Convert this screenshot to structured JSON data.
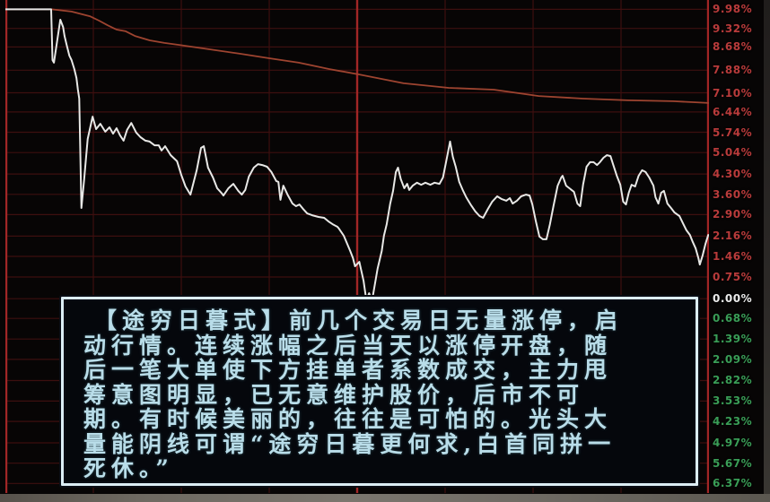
{
  "colors": {
    "background": "#070505",
    "grid_minor": "#3d0f0f",
    "grid_major": "#a12626",
    "price_line": "#e8e8e6",
    "avg_line": "#9e4430",
    "label_up": "#b93b3b",
    "label_zero": "#ececec",
    "label_down": "#3a9e57",
    "box_border": "#dcedf4",
    "box_background": "#05070c",
    "box_text": "#b9dde9"
  },
  "chart_data": {
    "type": "line",
    "title": "",
    "xlabel": "",
    "ylabel": "",
    "x_axis": {
      "unit": "percent_of_trading_session",
      "gridlines": [
        0,
        12.5,
        25,
        37.5,
        50,
        62.5,
        75,
        87.5,
        100
      ],
      "major_gridlines": [
        0,
        50,
        100
      ]
    },
    "y_axis": {
      "top_pct": 10.3,
      "bottom_pct": -6.7,
      "grid_on": true,
      "tick_labels": [
        {
          "text": "9.98%",
          "value": 9.98,
          "state": "up"
        },
        {
          "text": "9.32%",
          "value": 9.32,
          "state": "up"
        },
        {
          "text": "8.68%",
          "value": 8.68,
          "state": "up"
        },
        {
          "text": "7.88%",
          "value": 7.88,
          "state": "up"
        },
        {
          "text": "7.10%",
          "value": 7.1,
          "state": "up"
        },
        {
          "text": "6.44%",
          "value": 6.44,
          "state": "up"
        },
        {
          "text": "5.74%",
          "value": 5.74,
          "state": "up"
        },
        {
          "text": "5.04%",
          "value": 5.04,
          "state": "up"
        },
        {
          "text": "4.30%",
          "value": 4.3,
          "state": "up"
        },
        {
          "text": "3.60%",
          "value": 3.6,
          "state": "up"
        },
        {
          "text": "2.90%",
          "value": 2.9,
          "state": "up"
        },
        {
          "text": "2.16%",
          "value": 2.16,
          "state": "up"
        },
        {
          "text": "1.46%",
          "value": 1.46,
          "state": "up"
        },
        {
          "text": "0.75%",
          "value": 0.75,
          "state": "up"
        },
        {
          "text": "0.00%",
          "value": 0.0,
          "state": "zero"
        },
        {
          "text": "0.68%",
          "value": -0.68,
          "state": "down"
        },
        {
          "text": "1.39%",
          "value": -1.39,
          "state": "down"
        },
        {
          "text": "2.09%",
          "value": -2.09,
          "state": "down"
        },
        {
          "text": "2.82%",
          "value": -2.82,
          "state": "down"
        },
        {
          "text": "3.53%",
          "value": -3.53,
          "state": "down"
        },
        {
          "text": "4.23%",
          "value": -4.23,
          "state": "down"
        },
        {
          "text": "4.97%",
          "value": -4.97,
          "state": "down"
        },
        {
          "text": "5.67%",
          "value": -5.67,
          "state": "down"
        },
        {
          "text": "6.37%",
          "value": -6.37,
          "state": "down"
        }
      ]
    },
    "series": [
      {
        "name": "price",
        "color": "#e8e8e6",
        "width": 2,
        "points": [
          [
            0,
            9.98
          ],
          [
            6.5,
            9.98
          ],
          [
            6.7,
            8.23
          ],
          [
            6.9,
            8.14
          ],
          [
            7.8,
            9.62
          ],
          [
            8.2,
            9.37
          ],
          [
            8.4,
            9.06
          ],
          [
            8.7,
            8.76
          ],
          [
            9.1,
            8.38
          ],
          [
            9.4,
            8.23
          ],
          [
            9.8,
            7.92
          ],
          [
            10.1,
            7.61
          ],
          [
            10.3,
            7.21
          ],
          [
            10.5,
            6.9
          ],
          [
            10.8,
            3.13
          ],
          [
            11.2,
            4.12
          ],
          [
            11.7,
            5.51
          ],
          [
            12.4,
            6.28
          ],
          [
            12.9,
            5.85
          ],
          [
            13.5,
            6.03
          ],
          [
            14.2,
            5.76
          ],
          [
            14.8,
            5.91
          ],
          [
            15.3,
            5.69
          ],
          [
            15.8,
            5.88
          ],
          [
            16.3,
            5.63
          ],
          [
            16.8,
            5.45
          ],
          [
            17.3,
            5.82
          ],
          [
            17.9,
            6.06
          ],
          [
            18.6,
            5.73
          ],
          [
            19.2,
            5.57
          ],
          [
            19.9,
            5.45
          ],
          [
            20.5,
            5.42
          ],
          [
            21.2,
            5.29
          ],
          [
            21.8,
            5.29
          ],
          [
            22.2,
            5.11
          ],
          [
            22.7,
            5.26
          ],
          [
            23.5,
            4.95
          ],
          [
            24.4,
            4.74
          ],
          [
            25.0,
            4.27
          ],
          [
            25.6,
            3.87
          ],
          [
            26.3,
            3.59
          ],
          [
            27.2,
            4.43
          ],
          [
            27.8,
            5.2
          ],
          [
            28.2,
            5.26
          ],
          [
            28.8,
            4.52
          ],
          [
            29.5,
            4.18
          ],
          [
            30.1,
            3.81
          ],
          [
            30.8,
            3.62
          ],
          [
            31.0,
            3.56
          ],
          [
            31.7,
            3.81
          ],
          [
            32.1,
            3.9
          ],
          [
            32.4,
            3.96
          ],
          [
            33.1,
            3.72
          ],
          [
            33.6,
            3.59
          ],
          [
            34.1,
            3.75
          ],
          [
            34.6,
            4.21
          ],
          [
            35.3,
            4.52
          ],
          [
            35.9,
            4.64
          ],
          [
            36.5,
            4.61
          ],
          [
            37.2,
            4.55
          ],
          [
            37.8,
            4.37
          ],
          [
            38.5,
            4.06
          ],
          [
            38.8,
            4.03
          ],
          [
            39.1,
            3.41
          ],
          [
            39.5,
            3.9
          ],
          [
            40.1,
            3.59
          ],
          [
            40.8,
            3.28
          ],
          [
            41.3,
            3.19
          ],
          [
            41.8,
            3.25
          ],
          [
            42.3,
            3.1
          ],
          [
            42.9,
            2.94
          ],
          [
            43.6,
            2.88
          ],
          [
            44.5,
            2.82
          ],
          [
            45.3,
            2.79
          ],
          [
            45.9,
            2.67
          ],
          [
            46.5,
            2.57
          ],
          [
            47.2,
            2.48
          ],
          [
            47.4,
            2.42
          ],
          [
            48.1,
            2.17
          ],
          [
            49.0,
            1.65
          ],
          [
            49.4,
            1.4
          ],
          [
            49.7,
            1.12
          ],
          [
            50.3,
            1.27
          ],
          [
            50.9,
            0.62
          ],
          [
            51.3,
            -0.05
          ],
          [
            51.7,
            0.19
          ],
          [
            52.1,
            -0.08
          ],
          [
            52.9,
            1.03
          ],
          [
            53.5,
            1.65
          ],
          [
            53.8,
            2.17
          ],
          [
            54.2,
            2.57
          ],
          [
            54.7,
            3.28
          ],
          [
            55.1,
            3.72
          ],
          [
            55.5,
            4.37
          ],
          [
            55.8,
            4.52
          ],
          [
            56.2,
            4.12
          ],
          [
            56.7,
            3.81
          ],
          [
            57.1,
            3.96
          ],
          [
            57.4,
            3.75
          ],
          [
            57.9,
            3.9
          ],
          [
            58.5,
            4.0
          ],
          [
            59.1,
            3.93
          ],
          [
            59.7,
            4.0
          ],
          [
            60.4,
            3.93
          ],
          [
            61.0,
            4.0
          ],
          [
            61.7,
            3.96
          ],
          [
            62.2,
            4.18
          ],
          [
            62.7,
            4.8
          ],
          [
            63.2,
            5.42
          ],
          [
            63.6,
            4.89
          ],
          [
            64.0,
            4.55
          ],
          [
            64.5,
            4.03
          ],
          [
            65.0,
            3.75
          ],
          [
            65.5,
            3.5
          ],
          [
            66.2,
            3.22
          ],
          [
            66.8,
            3.01
          ],
          [
            67.4,
            2.85
          ],
          [
            67.9,
            2.79
          ],
          [
            68.6,
            3.1
          ],
          [
            69.2,
            3.35
          ],
          [
            69.9,
            3.53
          ],
          [
            70.5,
            3.44
          ],
          [
            71.2,
            3.38
          ],
          [
            71.7,
            3.47
          ],
          [
            72.1,
            3.28
          ],
          [
            72.7,
            3.38
          ],
          [
            73.3,
            3.53
          ],
          [
            74.0,
            3.59
          ],
          [
            74.5,
            3.56
          ],
          [
            74.9,
            3.25
          ],
          [
            75.4,
            2.67
          ],
          [
            75.9,
            2.14
          ],
          [
            76.4,
            2.05
          ],
          [
            76.9,
            2.05
          ],
          [
            77.4,
            2.57
          ],
          [
            77.9,
            3.19
          ],
          [
            78.5,
            3.9
          ],
          [
            79.0,
            4.18
          ],
          [
            79.2,
            4.24
          ],
          [
            79.7,
            3.9
          ],
          [
            80.3,
            3.78
          ],
          [
            80.8,
            3.69
          ],
          [
            81.3,
            3.28
          ],
          [
            81.7,
            3.19
          ],
          [
            82.1,
            3.93
          ],
          [
            82.6,
            4.55
          ],
          [
            83.1,
            4.71
          ],
          [
            83.6,
            4.71
          ],
          [
            84.1,
            4.61
          ],
          [
            84.5,
            4.71
          ],
          [
            85.0,
            4.86
          ],
          [
            85.5,
            4.95
          ],
          [
            86.0,
            4.92
          ],
          [
            86.4,
            4.61
          ],
          [
            86.9,
            4.24
          ],
          [
            87.4,
            3.93
          ],
          [
            87.8,
            3.35
          ],
          [
            88.2,
            3.25
          ],
          [
            88.6,
            3.65
          ],
          [
            89.0,
            3.93
          ],
          [
            89.5,
            3.87
          ],
          [
            90.0,
            4.24
          ],
          [
            90.5,
            4.43
          ],
          [
            91.0,
            4.37
          ],
          [
            91.5,
            4.18
          ],
          [
            92.1,
            3.9
          ],
          [
            92.4,
            3.5
          ],
          [
            92.8,
            3.28
          ],
          [
            93.2,
            3.65
          ],
          [
            93.6,
            3.72
          ],
          [
            94.1,
            3.28
          ],
          [
            94.6,
            3.13
          ],
          [
            95.1,
            2.97
          ],
          [
            95.8,
            2.85
          ],
          [
            96.3,
            2.6
          ],
          [
            96.8,
            2.36
          ],
          [
            97.3,
            2.2
          ],
          [
            97.7,
            1.95
          ],
          [
            98.1,
            1.74
          ],
          [
            98.5,
            1.4
          ],
          [
            98.7,
            1.18
          ],
          [
            99.1,
            1.49
          ],
          [
            99.5,
            1.89
          ],
          [
            99.9,
            2.2
          ]
        ]
      },
      {
        "name": "average-price",
        "color": "#9e4430",
        "width": 1.8,
        "points": [
          [
            0,
            9.98
          ],
          [
            6.6,
            9.98
          ],
          [
            9.4,
            9.9
          ],
          [
            12.0,
            9.74
          ],
          [
            13.3,
            9.59
          ],
          [
            14.5,
            9.43
          ],
          [
            15.8,
            9.28
          ],
          [
            17.1,
            9.22
          ],
          [
            18.4,
            9.06
          ],
          [
            20.5,
            8.91
          ],
          [
            22.6,
            8.82
          ],
          [
            24.7,
            8.75
          ],
          [
            29.0,
            8.6
          ],
          [
            33.3,
            8.45
          ],
          [
            37.5,
            8.29
          ],
          [
            41.7,
            8.14
          ],
          [
            46.0,
            7.92
          ],
          [
            50.3,
            7.73
          ],
          [
            56.6,
            7.43
          ],
          [
            63.0,
            7.27
          ],
          [
            69.4,
            7.21
          ],
          [
            75.8,
            6.99
          ],
          [
            82.1,
            6.9
          ],
          [
            88.5,
            6.84
          ],
          [
            94.9,
            6.81
          ],
          [
            100,
            6.75
          ]
        ]
      }
    ],
    "legend": "none"
  },
  "annotation": {
    "lines": [
      "【途穷日暮式】前几个交易日无量涨停，启",
      "动行情。连续涨幅之后当天以涨停开盘，随",
      "后一笔大单使下方挂单者系数成交，主力甩",
      "筹意图明显，已无意维护股价，后市不可",
      "期。有时候美丽的，往往是可怕的。光头大",
      "量能阴线可谓“途穷日暮更何求,白首同拼一",
      "死休。”"
    ]
  }
}
